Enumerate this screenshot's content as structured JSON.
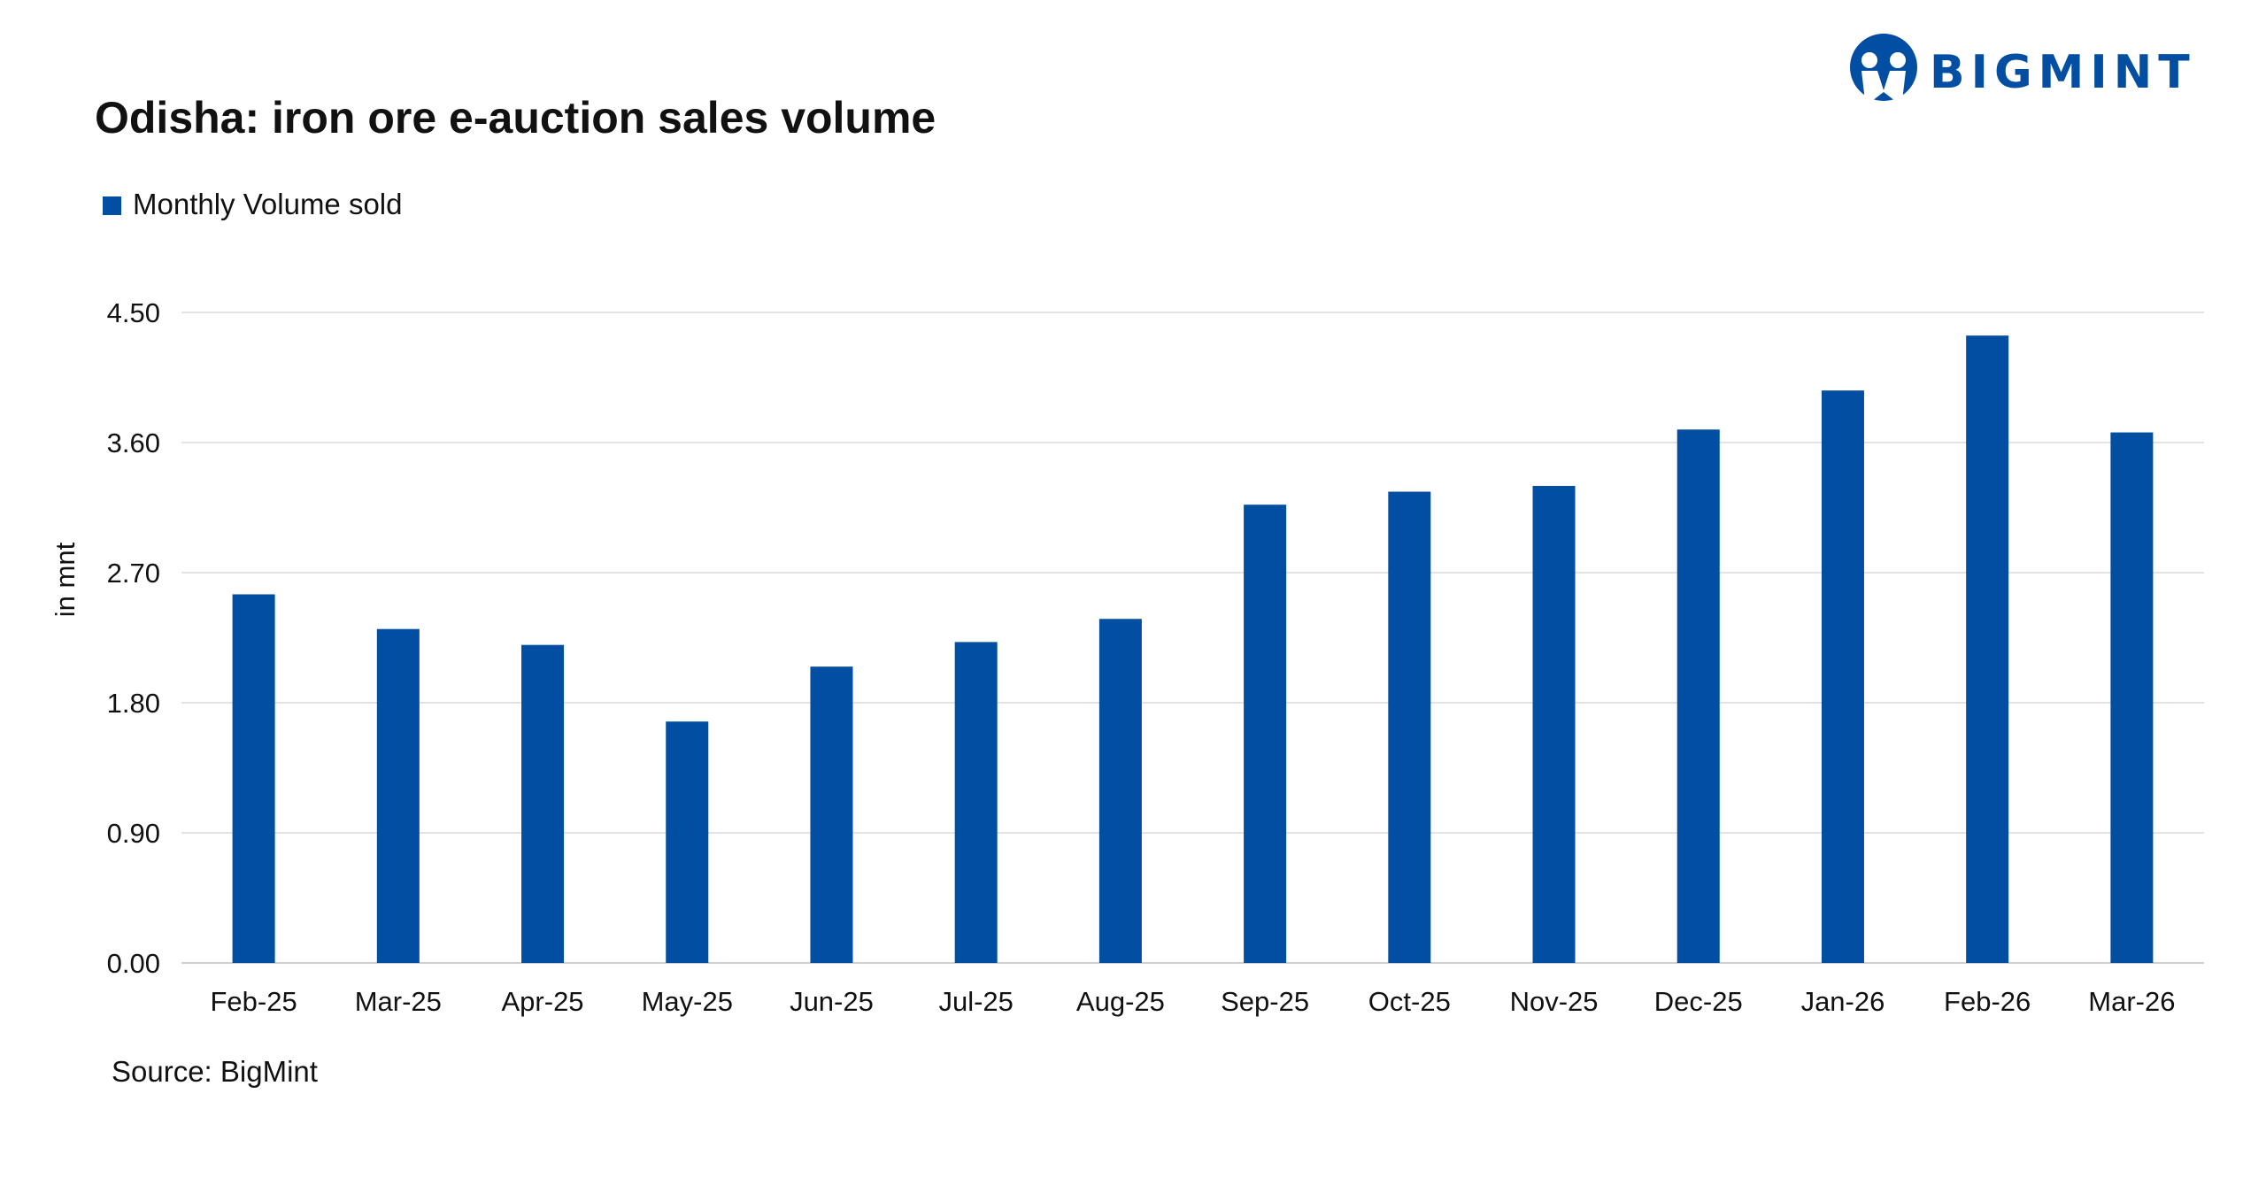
{
  "brand": {
    "name": "BIGMINT",
    "color": "#024EA2"
  },
  "chart_data": {
    "type": "bar",
    "title": "Odisha: iron ore e-auction sales volume",
    "ylabel": "in mnt",
    "xlabel": "",
    "ylim": [
      0,
      4.5
    ],
    "yticks": [
      "0.00",
      "0.90",
      "1.80",
      "2.70",
      "3.60",
      "4.50"
    ],
    "ytick_values": [
      0,
      0.9,
      1.8,
      2.7,
      3.6,
      4.5
    ],
    "grid": true,
    "legend": {
      "position": "top-left",
      "entries": [
        "Monthly Volume sold"
      ]
    },
    "categories": [
      "Feb-25",
      "Mar-25",
      "Apr-25",
      "May-25",
      "Jun-25",
      "Jul-25",
      "Aug-25",
      "Sep-25",
      "Oct-25",
      "Nov-25",
      "Dec-25",
      "Jan-26",
      "Feb-26",
      "Mar-26"
    ],
    "series": [
      {
        "name": "Monthly Volume sold",
        "color": "#024EA2",
        "values": [
          2.55,
          2.31,
          2.2,
          1.67,
          2.05,
          2.22,
          2.38,
          3.17,
          3.26,
          3.3,
          3.69,
          3.96,
          4.34,
          3.67
        ]
      }
    ],
    "source": "Source: BigMint"
  }
}
